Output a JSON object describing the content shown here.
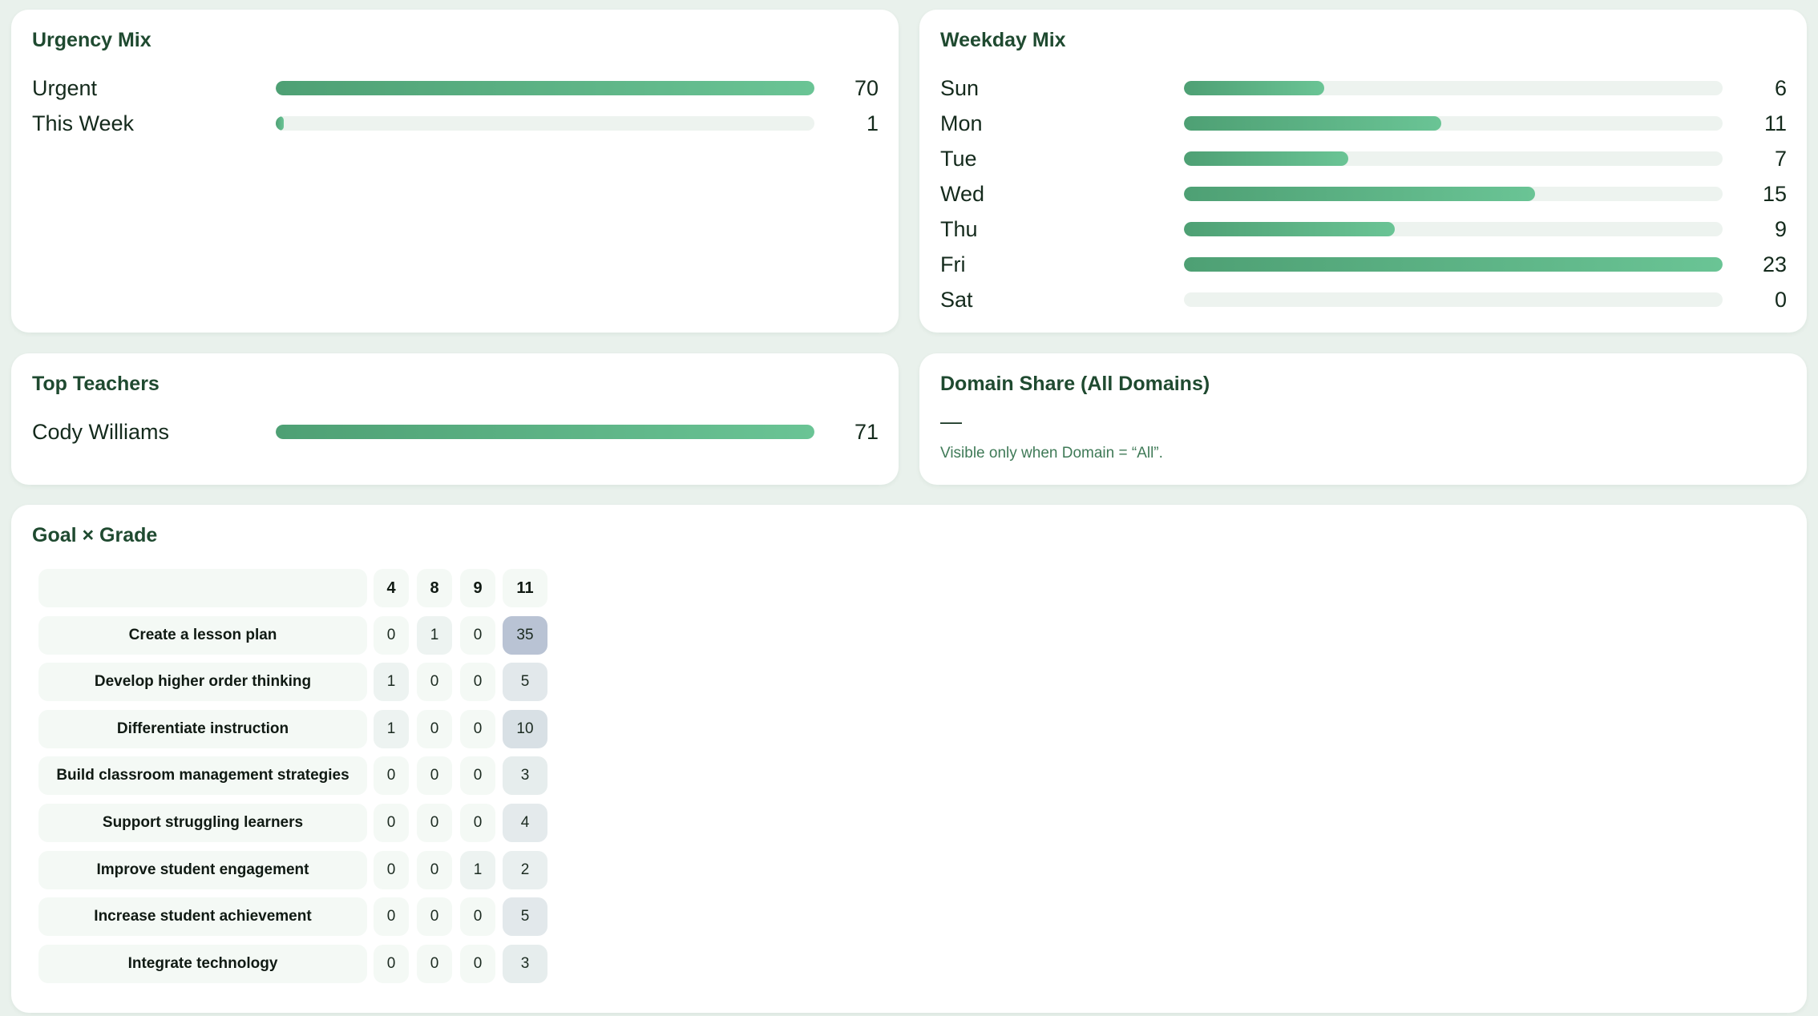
{
  "urgency": {
    "title": "Urgency Mix",
    "items": [
      {
        "label": "Urgent",
        "value": 70
      },
      {
        "label": "This Week",
        "value": 1
      }
    ]
  },
  "weekday": {
    "title": "Weekday Mix",
    "items": [
      {
        "label": "Sun",
        "value": 6
      },
      {
        "label": "Mon",
        "value": 11
      },
      {
        "label": "Tue",
        "value": 7
      },
      {
        "label": "Wed",
        "value": 15
      },
      {
        "label": "Thu",
        "value": 9
      },
      {
        "label": "Fri",
        "value": 23
      },
      {
        "label": "Sat",
        "value": 0
      }
    ]
  },
  "teachers": {
    "title": "Top Teachers",
    "items": [
      {
        "label": "Cody Williams",
        "value": 71
      }
    ]
  },
  "domain_share": {
    "title": "Domain Share (All Domains)",
    "value": "—",
    "note": "Visible only when Domain = “All”."
  },
  "goal_grade": {
    "title": "Goal × Grade",
    "columns": [
      "4",
      "8",
      "9",
      "11"
    ],
    "rows": [
      {
        "label": "Create a lesson plan",
        "values": [
          0,
          1,
          0,
          35
        ]
      },
      {
        "label": "Develop higher order thinking",
        "values": [
          1,
          0,
          0,
          5
        ]
      },
      {
        "label": "Differentiate instruction",
        "values": [
          1,
          0,
          0,
          10
        ]
      },
      {
        "label": "Build classroom management strategies",
        "values": [
          0,
          0,
          0,
          3
        ]
      },
      {
        "label": "Support struggling learners",
        "values": [
          0,
          0,
          0,
          4
        ]
      },
      {
        "label": "Improve student engagement",
        "values": [
          0,
          0,
          1,
          2
        ]
      },
      {
        "label": "Increase student achievement",
        "values": [
          0,
          0,
          0,
          5
        ]
      },
      {
        "label": "Integrate technology",
        "values": [
          0,
          0,
          0,
          3
        ]
      }
    ]
  },
  "colors": {
    "bar_start": "#4ea074",
    "bar_end": "#6ac495",
    "track": "#edf3ef",
    "heat_low": "#f4f9f5",
    "heat_high": "#b9c3d4"
  }
}
